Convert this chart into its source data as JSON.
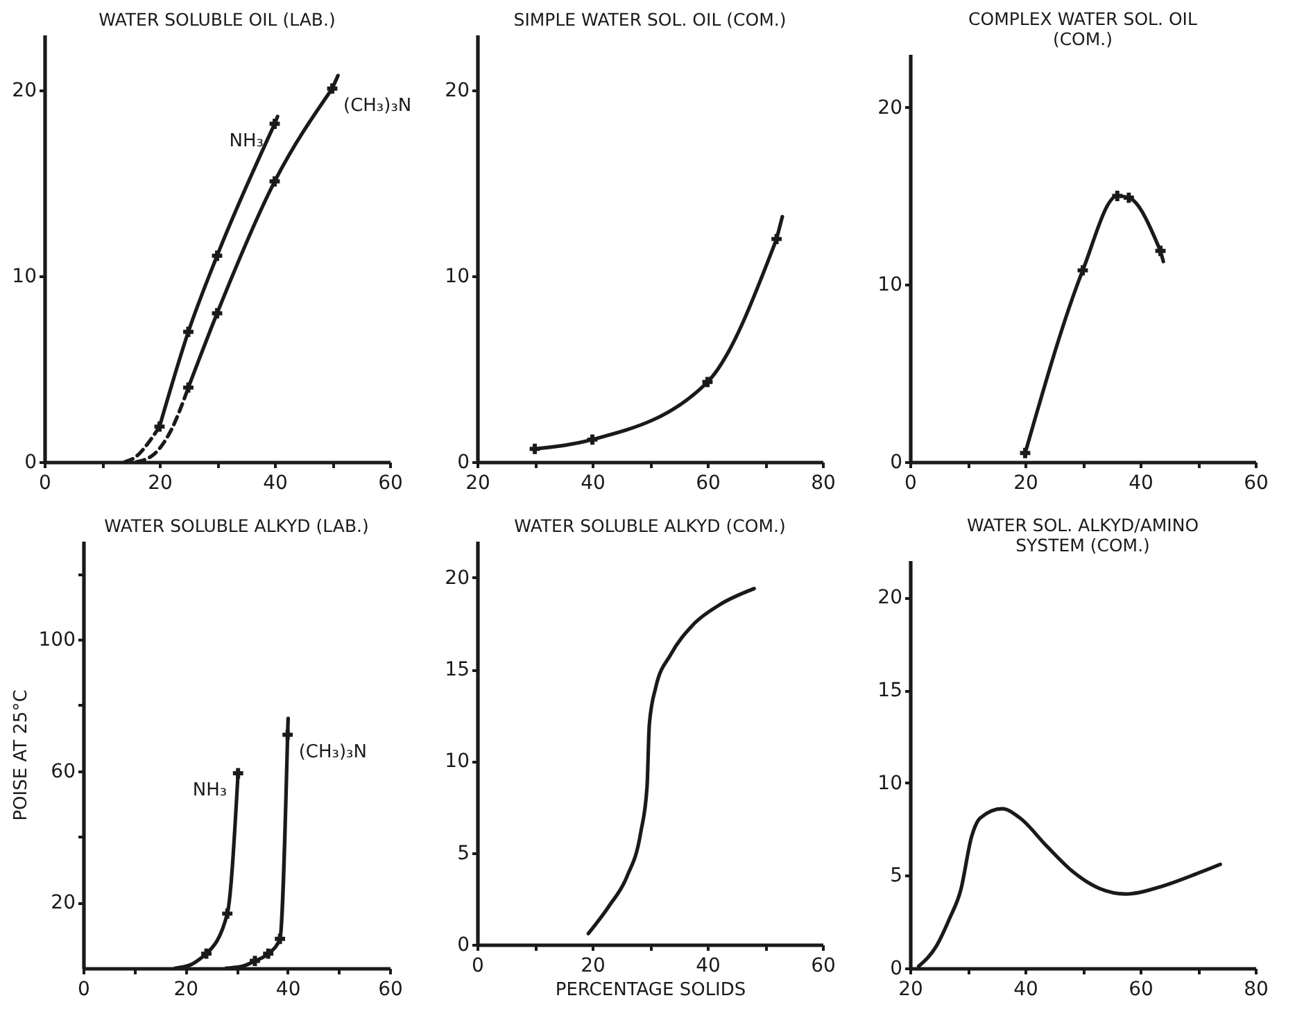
{
  "chart_data": [
    {
      "type": "line",
      "title": "WATER SOLUBLE OIL (LAB.)",
      "marker": "cross",
      "xlim": [
        0,
        60
      ],
      "ylim": [
        0,
        23
      ],
      "xticks": [
        0,
        {
          "value": 10,
          "label": null
        },
        20,
        {
          "value": 30,
          "label": null
        },
        40,
        {
          "value": 50,
          "label": null
        },
        60
      ],
      "yticks": [
        0,
        10,
        20
      ],
      "series": [
        {
          "name": "NH₃",
          "color": "#1a1a1a",
          "x": [
            20,
            25,
            30,
            40
          ],
          "values": [
            1.9,
            7.0,
            11.1,
            18.2
          ]
        },
        {
          "name": "(CH₃)₃N",
          "color": "#1a1a1a",
          "x": [
            25,
            30,
            40,
            50
          ],
          "values": [
            4.0,
            8.0,
            15.1,
            20.1
          ]
        },
        {
          "color": "#1a1a1a",
          "line_style": "dashed",
          "marker": "none",
          "x": [
            14,
            16,
            18,
            20
          ],
          "values": [
            0,
            0.3,
            1.0,
            1.9
          ]
        },
        {
          "color": "#1a1a1a",
          "line_style": "dashed",
          "marker": "none",
          "x": [
            16,
            19,
            22,
            25
          ],
          "values": [
            0,
            0.4,
            1.7,
            4.0
          ]
        },
        {
          "color": "#1a1a1a",
          "marker": "none",
          "x": [
            40,
            40.5
          ],
          "values": [
            18.2,
            18.6
          ]
        },
        {
          "color": "#1a1a1a",
          "marker": "none",
          "x": [
            50,
            51
          ],
          "values": [
            20.1,
            20.8
          ]
        }
      ]
    },
    {
      "type": "line",
      "title": "SIMPLE WATER SOL. OIL (COM.)",
      "marker": "cross",
      "xlim": [
        20,
        80
      ],
      "ylim": [
        0,
        23
      ],
      "xticks": [
        20,
        {
          "value": 30,
          "label": null
        },
        40,
        {
          "value": 50,
          "label": null
        },
        60,
        {
          "value": 70,
          "label": null
        },
        80
      ],
      "yticks": [
        0,
        10,
        20
      ],
      "series": [
        {
          "color": "#1a1a1a",
          "x": [
            30,
            40,
            60,
            72
          ],
          "values": [
            0.7,
            1.2,
            4.3,
            12.0
          ]
        },
        {
          "color": "#1a1a1a",
          "marker": "none",
          "x": [
            72,
            73
          ],
          "values": [
            12.0,
            13.2
          ]
        }
      ]
    },
    {
      "type": "line",
      "title": "COMPLEX WATER SOL. OIL\n(COM.)",
      "marker": "cross",
      "xlim": [
        0,
        60
      ],
      "ylim": [
        0,
        23
      ],
      "xticks": [
        0,
        {
          "value": 10,
          "label": null
        },
        20,
        {
          "value": 30,
          "label": null
        },
        40,
        {
          "value": 50,
          "label": null
        },
        60
      ],
      "yticks": [
        0,
        10,
        20
      ],
      "series": [
        {
          "color": "#1a1a1a",
          "x": [
            20,
            30,
            36,
            38,
            43.5
          ],
          "values": [
            0.5,
            10.8,
            15.0,
            14.9,
            11.9
          ]
        },
        {
          "color": "#1a1a1a",
          "marker": "none",
          "x": [
            43.5,
            44
          ],
          "values": [
            11.9,
            11.3
          ]
        }
      ]
    },
    {
      "type": "line",
      "title": "WATER SOLUBLE ALKYD (LAB.)",
      "ylabel": "POISE AT 25°C",
      "marker": "cross",
      "xlim": [
        0,
        60
      ],
      "ylim": [
        0,
        130
      ],
      "xticks": [
        0,
        {
          "value": 10,
          "label": null
        },
        20,
        {
          "value": 30,
          "label": null
        },
        40,
        {
          "value": 50,
          "label": null
        },
        60
      ],
      "yticks": [
        20,
        {
          "value": 40,
          "label": null
        },
        60,
        {
          "value": 80,
          "label": null
        },
        100,
        {
          "value": 120,
          "label": null
        }
      ],
      "series": [
        {
          "name": "NH₃",
          "color": "#1a1a1a",
          "x": [
            24.1,
            28.2,
            30.3
          ],
          "values": [
            4.4,
            16.6,
            59.3
          ]
        },
        {
          "name": "(CH₃)₃N",
          "color": "#1a1a1a",
          "x": [
            33.6,
            36.2,
            38.5,
            40
          ],
          "values": [
            2.2,
            4.4,
            8.9,
            71
          ]
        },
        {
          "color": "#1a1a1a",
          "marker": "none",
          "x": [
            18,
            21,
            24.1
          ],
          "values": [
            0,
            1,
            4.4
          ]
        },
        {
          "color": "#1a1a1a",
          "marker": "none",
          "x": [
            28,
            31,
            33.6
          ],
          "values": [
            0,
            0.5,
            2.2
          ]
        },
        {
          "color": "#1a1a1a",
          "marker": "none",
          "x": [
            40,
            40.1
          ],
          "values": [
            71,
            76
          ]
        }
      ]
    },
    {
      "type": "line",
      "title": "WATER SOLUBLE ALKYD (COM.)",
      "xlabel": "PERCENTAGE SOLIDS",
      "marker": "none",
      "xlim": [
        0,
        60
      ],
      "ylim": [
        0,
        22
      ],
      "xticks": [
        0,
        {
          "value": 10,
          "label": null
        },
        20,
        {
          "value": 30,
          "label": null
        },
        40,
        {
          "value": 50,
          "label": null
        },
        60
      ],
      "yticks": [
        0,
        5,
        10,
        15,
        20
      ],
      "series": [
        {
          "color": "#1a1a1a",
          "x": [
            19.3,
            22.9,
            26,
            28.4,
            29.5,
            29.9,
            31,
            33.6,
            37.4,
            42,
            48.1
          ],
          "values": [
            0.6,
            2.1,
            3.7,
            6.1,
            8.6,
            12.0,
            14.0,
            15.8,
            17.4,
            18.5,
            19.4
          ]
        }
      ]
    },
    {
      "type": "line",
      "title": "WATER SOL. ALKYD/AMINO\nSYSTEM (COM.)",
      "marker": "none",
      "xlim": [
        20,
        80
      ],
      "ylim": [
        0,
        22
      ],
      "xticks": [
        20,
        {
          "value": 30,
          "label": null
        },
        40,
        {
          "value": 50,
          "label": null
        },
        60,
        {
          "value": 70,
          "label": null
        },
        80
      ],
      "yticks": [
        0,
        5,
        10,
        15,
        20
      ],
      "series": [
        {
          "color": "#1a1a1a",
          "x": [
            21.5,
            24.6,
            26.9,
            28.8,
            30.7,
            32.2,
            36,
            39.1,
            43.7,
            48.3,
            52.9,
            57.5,
            63.6,
            69,
            73.9
          ],
          "values": [
            0.1,
            1.2,
            2.7,
            4.2,
            7.1,
            8.1,
            8.6,
            8.1,
            6.6,
            5.2,
            4.3,
            4.0,
            4.4,
            5.0,
            5.6
          ]
        }
      ]
    }
  ]
}
